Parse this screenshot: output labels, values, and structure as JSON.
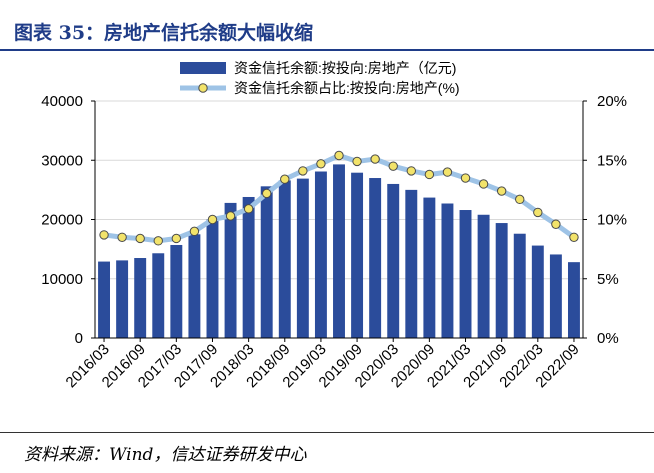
{
  "header": {
    "title": "图表 35：房地产信托余额大幅收缩"
  },
  "source": "资料来源：Wind，信达证券研发中心",
  "chart_data": {
    "type": "bar",
    "title": "",
    "xlabel": "",
    "ylabel": "",
    "ylim": [
      0,
      40000
    ],
    "y2lim": [
      0,
      20
    ],
    "yticks": [
      "0",
      "10000",
      "20000",
      "30000",
      "40000"
    ],
    "y2ticks": [
      "0%",
      "5%",
      "10%",
      "15%",
      "20%"
    ],
    "legend_position": "top-right",
    "categories": [
      "2016/03",
      "2016/06",
      "2016/09",
      "2016/12",
      "2017/03",
      "2017/06",
      "2017/09",
      "2017/12",
      "2018/03",
      "2018/06",
      "2018/09",
      "2018/12",
      "2019/03",
      "2019/06",
      "2019/09",
      "2019/12",
      "2020/03",
      "2020/06",
      "2020/09",
      "2020/12",
      "2021/03",
      "2021/06",
      "2021/09",
      "2021/12",
      "2022/03",
      "2022/06",
      "2022/09"
    ],
    "xtick_labels": [
      "2016/03",
      "2016/09",
      "2017/03",
      "2017/09",
      "2018/03",
      "2018/09",
      "2019/03",
      "2019/09",
      "2020/03",
      "2020/09",
      "2021/03",
      "2021/09",
      "2022/03",
      "2022/09"
    ],
    "series": [
      {
        "name": "资金信托余额:按投向:房地产（亿元)",
        "type": "bar",
        "axis": "left",
        "color": "#2b4c9b",
        "values": [
          12900,
          13100,
          13500,
          14300,
          15700,
          17500,
          20000,
          22800,
          23800,
          25600,
          26600,
          26900,
          28100,
          29300,
          27900,
          27000,
          26000,
          25000,
          23700,
          22700,
          21600,
          20800,
          19400,
          17600,
          15600,
          14100,
          12800
        ]
      },
      {
        "name": "资金信托余额占比:按投向:房地产(%)",
        "type": "line",
        "axis": "right",
        "color": "#9ec3e6",
        "marker": "#f2e36b",
        "values": [
          8.7,
          8.5,
          8.4,
          8.2,
          8.4,
          9.0,
          10.0,
          10.3,
          10.9,
          12.2,
          13.4,
          14.1,
          14.7,
          15.4,
          14.9,
          15.1,
          14.5,
          14.1,
          13.8,
          14.0,
          13.5,
          13.0,
          12.4,
          11.7,
          10.6,
          9.6,
          8.5
        ]
      }
    ]
  }
}
